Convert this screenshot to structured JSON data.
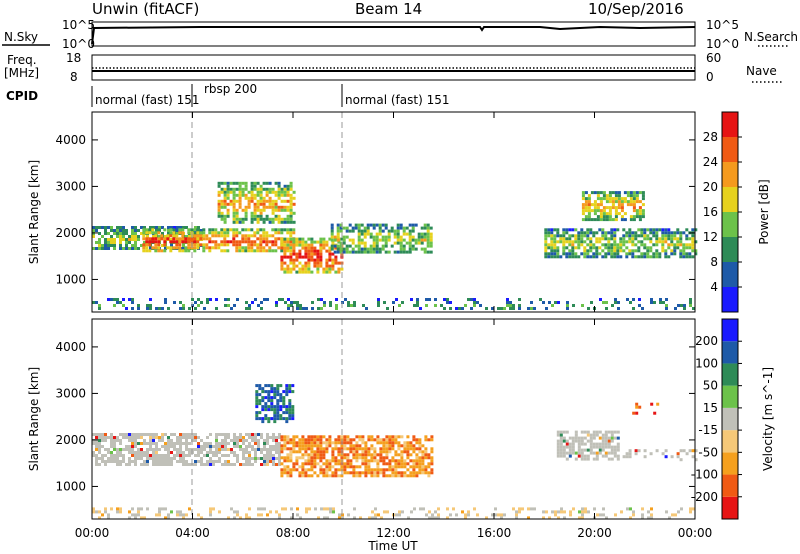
{
  "header": {
    "left_title": "Unwin (fitACF)",
    "center_title": "Beam 14",
    "right_title": "10/Sep/2016"
  },
  "panels": {
    "nsky": {
      "label": "N.Sky",
      "left_ticks": [
        "10^5",
        "10^0"
      ],
      "right_ticks": [
        "10^5",
        "10^0"
      ],
      "right_label": "N.Search"
    },
    "freq": {
      "label_line1": "Freq.",
      "label_line2": "[MHz]",
      "left_ticks": [
        "18",
        "8"
      ],
      "right_ticks": [
        "60",
        "0"
      ],
      "right_label": "Nave"
    },
    "cpid": {
      "label": "CPID",
      "segments": [
        "normal (fast) 151",
        "rbsp 200",
        "normal (fast) 151"
      ]
    }
  },
  "chart_data": [
    {
      "type": "heatmap",
      "title": "",
      "xlabel": "",
      "ylabel": "Slant Range [km]",
      "x_ticks": [
        "00:00",
        "04:00",
        "08:00",
        "12:00",
        "16:00",
        "20:00",
        "00:00"
      ],
      "xlim_hours": [
        0,
        24
      ],
      "y_ticks": [
        1000,
        2000,
        3000,
        4000
      ],
      "ylim": [
        300,
        4600
      ],
      "colorbar_label": "Power [dB]",
      "colorbar_ticks": [
        4,
        8,
        12,
        16,
        20,
        24,
        28
      ],
      "colorbar_range": [
        0,
        32
      ],
      "colors": [
        "#1a1aff",
        "#1e5aa8",
        "#2e8b57",
        "#6cc24a",
        "#e6d21e",
        "#f59a1e",
        "#f05a14",
        "#e61414"
      ],
      "echo_regions": [
        {
          "t": [
            0.0,
            4.3
          ],
          "r": [
            1650,
            2150
          ],
          "level": 0.45
        },
        {
          "t": [
            2.0,
            8.0
          ],
          "r": [
            1600,
            2100
          ],
          "level": 0.75
        },
        {
          "t": [
            5.0,
            8.0
          ],
          "r": [
            2200,
            3100
          ],
          "level": 0.6
        },
        {
          "t": [
            7.5,
            10.0
          ],
          "r": [
            1150,
            1900
          ],
          "level": 0.8
        },
        {
          "t": [
            9.5,
            13.5
          ],
          "r": [
            1600,
            2200
          ],
          "level": 0.45
        },
        {
          "t": [
            18.0,
            24.0
          ],
          "r": [
            1500,
            2100
          ],
          "level": 0.45
        },
        {
          "t": [
            19.5,
            22.0
          ],
          "r": [
            2300,
            2900
          ],
          "level": 0.6
        },
        {
          "t": [
            0.0,
            24.0
          ],
          "r": [
            350,
            600
          ],
          "level": 0.3
        }
      ]
    },
    {
      "type": "heatmap",
      "title": "",
      "xlabel": "Time UT",
      "ylabel": "Slant Range [km]",
      "x_ticks": [
        "00:00",
        "04:00",
        "08:00",
        "12:00",
        "16:00",
        "20:00",
        "00:00"
      ],
      "xlim_hours": [
        0,
        24
      ],
      "y_ticks": [
        1000,
        2000,
        3000,
        4000
      ],
      "ylim": [
        300,
        4600
      ],
      "colorbar_label": "Velocity [m s^-1]",
      "colorbar_ticks": [
        -200,
        -100,
        -50,
        -15,
        15,
        50,
        100,
        200
      ],
      "colorbar_range": [
        -250,
        250
      ],
      "colors": [
        "#e61414",
        "#f05a14",
        "#f5a01e",
        "#f5c878",
        "#c0c0b8",
        "#6cc24a",
        "#2e8b57",
        "#1e5aa8",
        "#1a1aff"
      ],
      "echo_regions": [
        {
          "t": [
            0.0,
            7.5
          ],
          "r": [
            1450,
            2150
          ],
          "vel": "ground-scatter"
        },
        {
          "t": [
            7.5,
            13.5
          ],
          "r": [
            1200,
            2100
          ],
          "vel": -120
        },
        {
          "t": [
            6.5,
            8.0
          ],
          "r": [
            2400,
            3200
          ],
          "vel": 150
        },
        {
          "t": [
            18.5,
            21.0
          ],
          "r": [
            1600,
            2200
          ],
          "vel": "ground-scatter"
        },
        {
          "t": [
            21.0,
            24.0
          ],
          "r": [
            1600,
            1800
          ],
          "vel": "ground-scatter"
        },
        {
          "t": [
            21.5,
            23.0
          ],
          "r": [
            2600,
            2800
          ],
          "vel": -150
        },
        {
          "t": [
            0.0,
            24.0
          ],
          "r": [
            350,
            550
          ],
          "vel": -30
        }
      ]
    }
  ]
}
